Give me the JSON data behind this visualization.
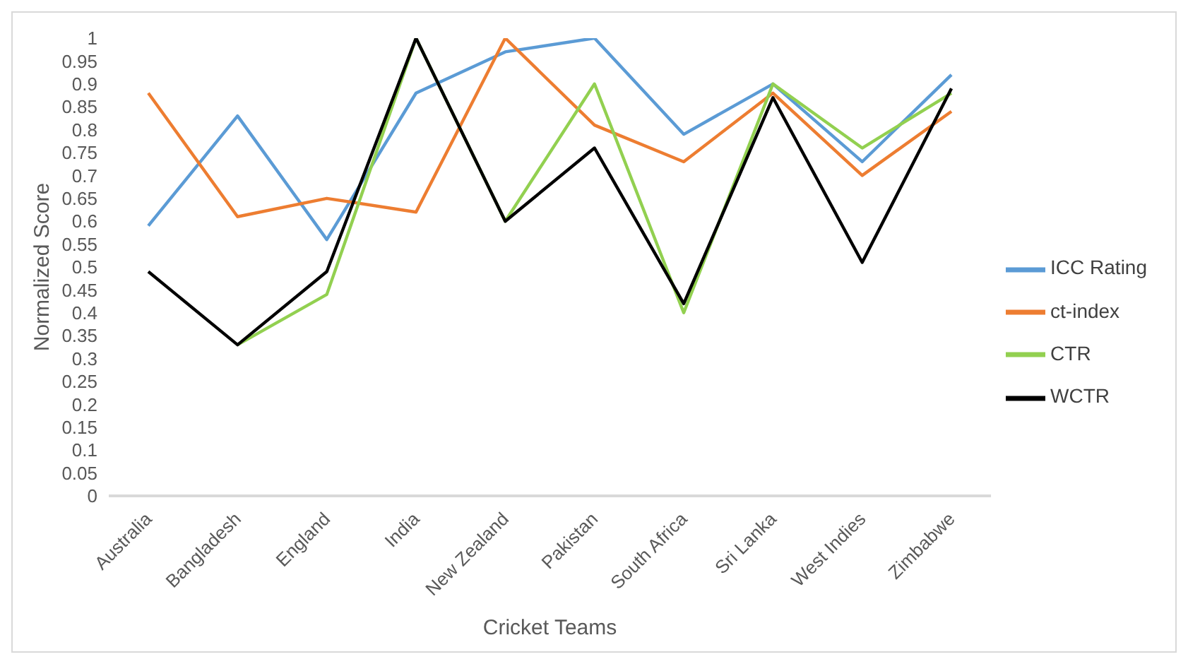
{
  "chart_data": {
    "type": "line",
    "xlabel": "Cricket Teams",
    "ylabel": "Normalized Score",
    "categories": [
      "Australia",
      "Bangladesh",
      "England",
      "India",
      "New Zealand",
      "Pakistan",
      "South Africa",
      "Sri Lanka",
      "West Indies",
      "Zimbabwe"
    ],
    "series": [
      {
        "name": "ICC Rating",
        "color": "#5b9bd5",
        "values": [
          0.59,
          0.83,
          0.56,
          0.88,
          0.97,
          1.0,
          0.79,
          0.9,
          0.73,
          0.92
        ]
      },
      {
        "name": "ct-index",
        "color": "#ed7d31",
        "values": [
          0.88,
          0.61,
          0.65,
          0.62,
          1.0,
          0.81,
          0.73,
          0.88,
          0.7,
          0.84
        ]
      },
      {
        "name": "CTR",
        "color": "#92d050",
        "values": [
          null,
          0.33,
          0.44,
          1.0,
          0.6,
          0.9,
          0.4,
          0.9,
          0.76,
          0.88
        ]
      },
      {
        "name": "WCTR",
        "color": "#000000",
        "values": [
          0.49,
          0.33,
          0.49,
          1.0,
          0.6,
          0.76,
          0.42,
          0.87,
          0.51,
          0.89
        ]
      }
    ],
    "ylim": [
      0,
      1
    ],
    "yticks": [
      0,
      0.05,
      0.1,
      0.15,
      0.2,
      0.25,
      0.3,
      0.35,
      0.4,
      0.45,
      0.5,
      0.55,
      0.6,
      0.65,
      0.7,
      0.75,
      0.8,
      0.85,
      0.9,
      0.95,
      1
    ],
    "grid": false,
    "legend": "right",
    "marker": "none",
    "line_style": "solid"
  }
}
